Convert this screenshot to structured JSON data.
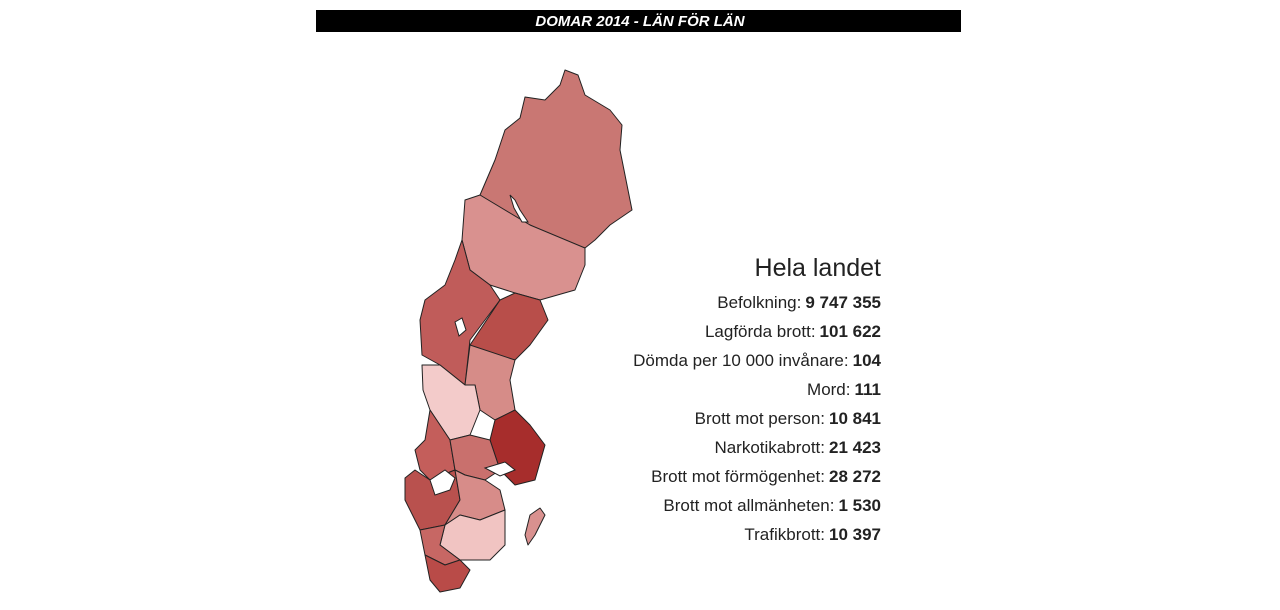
{
  "header": {
    "title": "DOMAR 2014 - LÄN FÖR LÄN"
  },
  "summary": {
    "title": "Hela landet",
    "rows": [
      {
        "label": "Befolkning:",
        "value": "9 747 355"
      },
      {
        "label": "Lagförda brott:",
        "value": "101 622"
      },
      {
        "label": "Dömda per 10 000 invånare:",
        "value": "104"
      },
      {
        "label": "Mord:",
        "value": "111"
      },
      {
        "label": "Brott mot person:",
        "value": "10 841"
      },
      {
        "label": "Narkotikabrott:",
        "value": "21 423"
      },
      {
        "label": "Brott mot förmögenhet:",
        "value": "28 272"
      },
      {
        "label": "Brott mot allmänheten:",
        "value": "1 530"
      },
      {
        "label": "Trafikbrott:",
        "value": "10 397"
      }
    ]
  }
}
